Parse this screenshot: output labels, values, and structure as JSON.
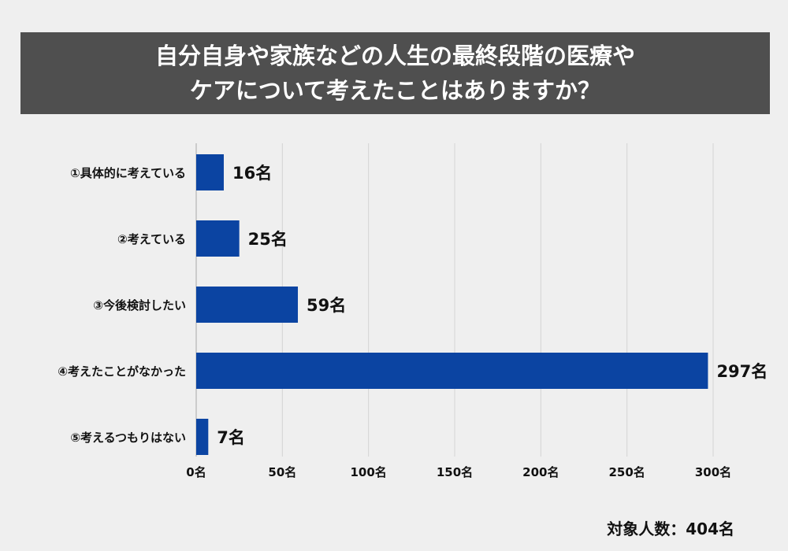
{
  "title": {
    "line1": "自分自身や家族などの人生の最終段階の医療や",
    "line2": "ケアについて考えたことはありますか？"
  },
  "footer": {
    "respondents": "対象人数：404名"
  },
  "colors": {
    "bar": "#0b44a2",
    "grid": "#d4d4d4",
    "banner": "#4f4f4f"
  },
  "chart_data": {
    "type": "bar",
    "orientation": "horizontal",
    "categories": [
      "①具体的に考えている",
      "②考えている",
      "③今後検討したい",
      "④考えたことがなかった",
      "⑤考えるつもりはない"
    ],
    "values": [
      16,
      25,
      59,
      297,
      7
    ],
    "value_labels": [
      "16名",
      "25名",
      "59名",
      "297名",
      "7名"
    ],
    "xlim": [
      0,
      300
    ],
    "xticks": [
      0,
      50,
      100,
      150,
      200,
      250,
      300
    ],
    "xtick_labels": [
      "0名",
      "50名",
      "100名",
      "150名",
      "200名",
      "250名",
      "300名"
    ],
    "grid": true
  }
}
